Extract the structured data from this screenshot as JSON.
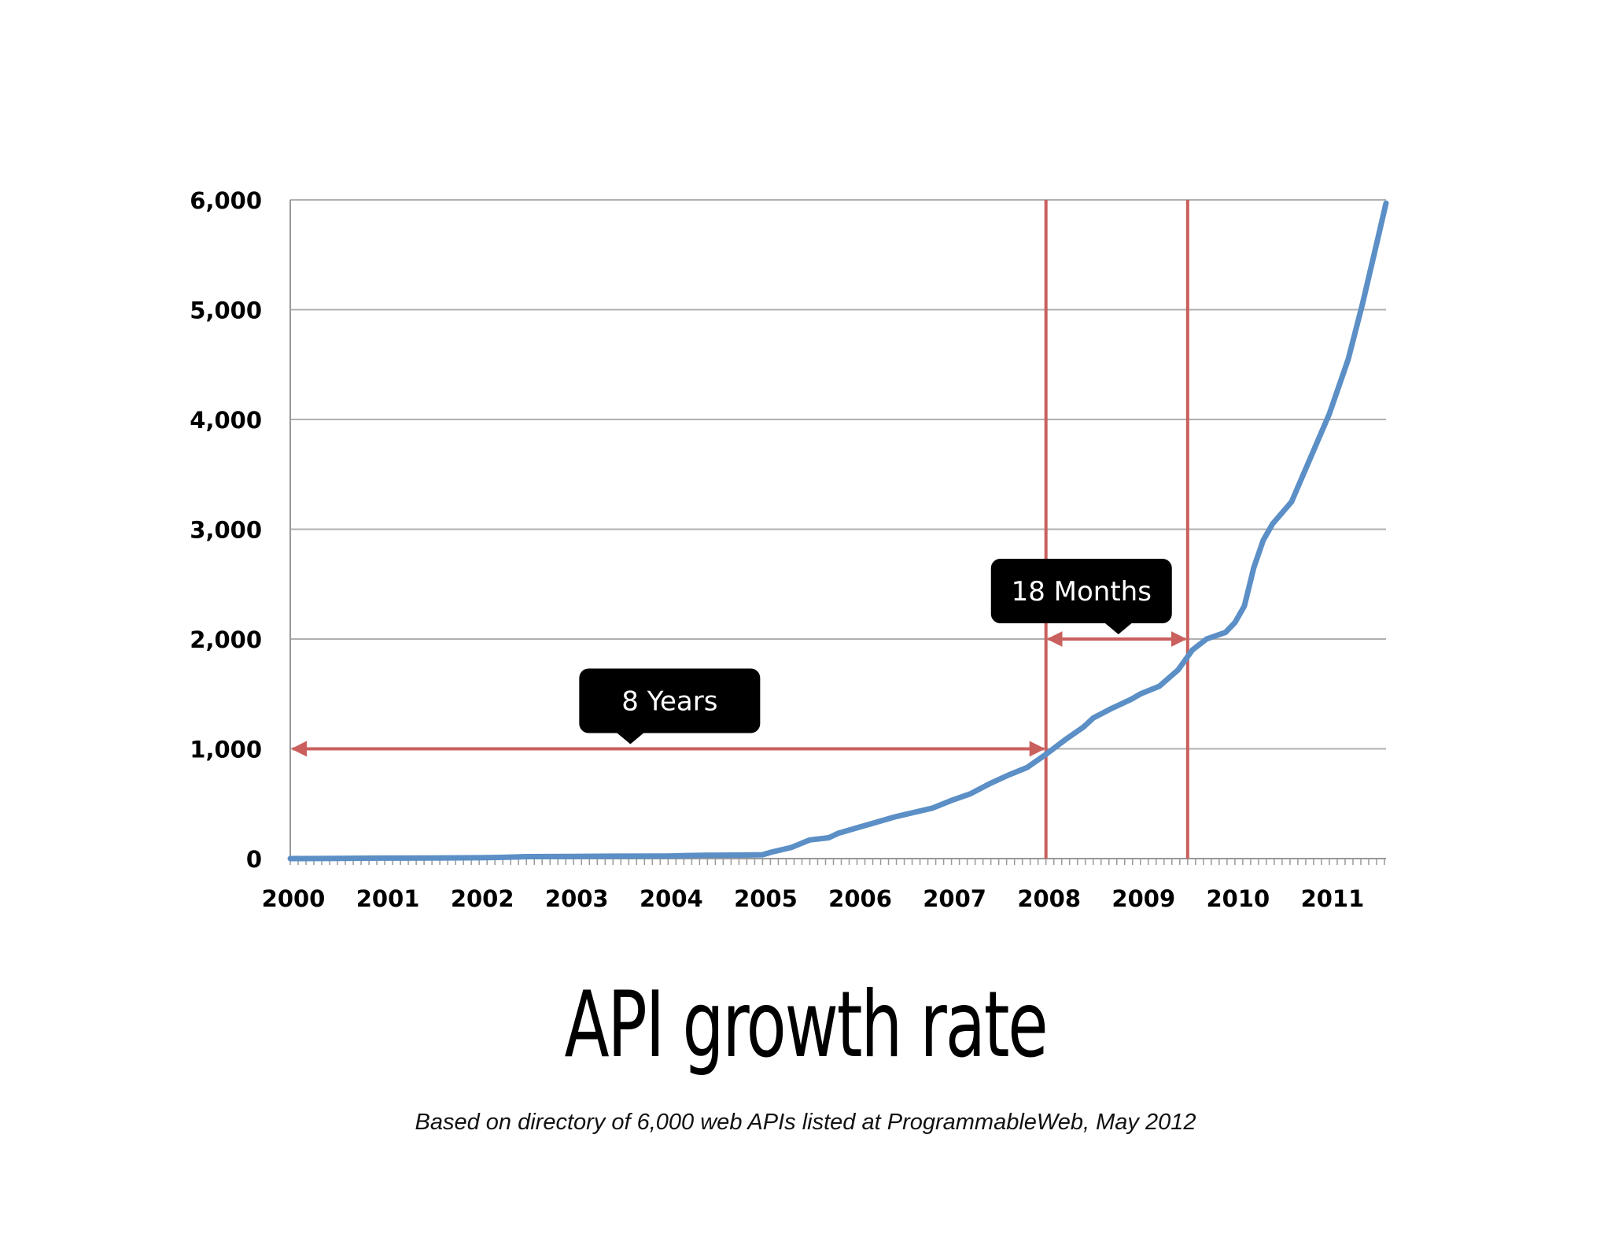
{
  "chart_data": {
    "type": "line",
    "title": "API growth rate",
    "caption": "Based on directory of 6,000 web APIs listed at ProgrammableWeb, May 2012",
    "xlabel": "",
    "ylabel": "",
    "xlim": [
      2000,
      2011.6
    ],
    "ylim": [
      0,
      6000
    ],
    "grid": true,
    "x_tick_labels": [
      "2000",
      "2001",
      "2002",
      "2003",
      "2004",
      "2005",
      "2006",
      "2007",
      "2008",
      "2009",
      "2010",
      "2011"
    ],
    "y_tick_labels": [
      "0",
      "1,000",
      "2,000",
      "3,000",
      "4,000",
      "5,000",
      "6,000"
    ],
    "colors": {
      "series": "#5b8fc6",
      "annotation": "#c9605d",
      "callout_bg": "#000000",
      "grid": "#b0b0b0"
    },
    "series": [
      {
        "points": [
          [
            2000.0,
            0
          ],
          [
            2000.5,
            2
          ],
          [
            2001.0,
            4
          ],
          [
            2001.5,
            6
          ],
          [
            2002.0,
            8
          ],
          [
            2002.3,
            12
          ],
          [
            2002.5,
            18
          ],
          [
            2003.0,
            20
          ],
          [
            2003.5,
            22
          ],
          [
            2004.0,
            24
          ],
          [
            2004.2,
            28
          ],
          [
            2004.4,
            30
          ],
          [
            2004.8,
            32
          ],
          [
            2005.0,
            35
          ],
          [
            2005.1,
            60
          ],
          [
            2005.3,
            100
          ],
          [
            2005.5,
            170
          ],
          [
            2005.7,
            190
          ],
          [
            2005.8,
            230
          ],
          [
            2006.0,
            280
          ],
          [
            2006.2,
            330
          ],
          [
            2006.4,
            380
          ],
          [
            2006.6,
            420
          ],
          [
            2006.8,
            460
          ],
          [
            2007.0,
            530
          ],
          [
            2007.2,
            590
          ],
          [
            2007.4,
            680
          ],
          [
            2007.6,
            760
          ],
          [
            2007.8,
            830
          ],
          [
            2008.0,
            950
          ],
          [
            2008.2,
            1080
          ],
          [
            2008.4,
            1200
          ],
          [
            2008.5,
            1280
          ],
          [
            2008.7,
            1370
          ],
          [
            2008.9,
            1450
          ],
          [
            2009.0,
            1500
          ],
          [
            2009.2,
            1570
          ],
          [
            2009.4,
            1720
          ],
          [
            2009.55,
            1900
          ],
          [
            2009.7,
            2000
          ],
          [
            2009.9,
            2060
          ],
          [
            2010.0,
            2150
          ],
          [
            2010.1,
            2300
          ],
          [
            2010.2,
            2650
          ],
          [
            2010.3,
            2900
          ],
          [
            2010.4,
            3050
          ],
          [
            2010.6,
            3250
          ],
          [
            2010.7,
            3450
          ],
          [
            2010.85,
            3750
          ],
          [
            2011.0,
            4050
          ],
          [
            2011.2,
            4550
          ],
          [
            2011.35,
            5050
          ],
          [
            2011.5,
            5600
          ],
          [
            2011.6,
            5970
          ]
        ]
      }
    ],
    "annotations": [
      {
        "label": "8 Years",
        "from_x": 2000.0,
        "to_x": 2008.0,
        "y": 1000
      },
      {
        "label": "18 Months",
        "from_x": 2008.0,
        "to_x": 2009.5,
        "y": 2000
      }
    ],
    "vertical_markers": [
      2008.0,
      2009.5
    ]
  }
}
